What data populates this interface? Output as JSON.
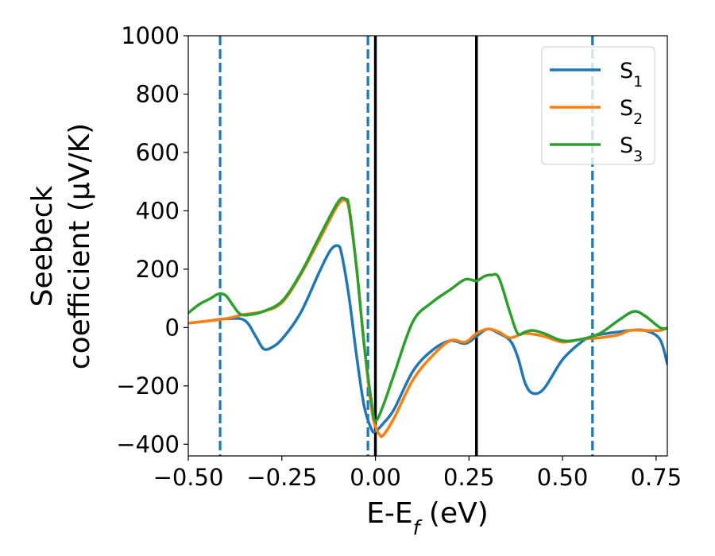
{
  "chart_data": {
    "type": "line",
    "xlabel": {
      "base": "E-E",
      "sub": "f",
      "tail": " (eV)"
    },
    "ylabel": {
      "line1": "Seebeck",
      "line2": "coefficient  (μV/K)"
    },
    "xlim": [
      -0.5,
      0.78
    ],
    "ylim": [
      -440,
      1000
    ],
    "xticks": [
      -0.5,
      -0.25,
      0.0,
      0.25,
      0.5,
      0.75
    ],
    "xtick_labels": [
      "−0.50",
      "−0.25",
      "0.00",
      "0.25",
      "0.50",
      "0.75"
    ],
    "yticks": [
      -400,
      -200,
      0,
      200,
      400,
      600,
      800,
      1000
    ],
    "ytick_labels": [
      "−400",
      "−200",
      "0",
      "200",
      "400",
      "600",
      "800",
      "1000"
    ],
    "legend_position": "top-right",
    "series": [
      {
        "name": "S",
        "sub": "1",
        "color": "#1f77b4",
        "x": [
          -0.5,
          -0.45,
          -0.4,
          -0.35,
          -0.32,
          -0.3,
          -0.28,
          -0.25,
          -0.2,
          -0.15,
          -0.12,
          -0.1,
          -0.09,
          -0.07,
          -0.05,
          -0.03,
          -0.01,
          0.0,
          0.02,
          0.05,
          0.1,
          0.15,
          0.2,
          0.24,
          0.27,
          0.3,
          0.33,
          0.36,
          0.38,
          0.4,
          0.42,
          0.45,
          0.5,
          0.55,
          0.58,
          0.62,
          0.65,
          0.68,
          0.72,
          0.76,
          0.78
        ],
        "y": [
          15,
          22,
          30,
          25,
          -30,
          -72,
          -70,
          -40,
          50,
          190,
          265,
          280,
          250,
          100,
          -100,
          -270,
          -350,
          -355,
          -330,
          -280,
          -150,
          -80,
          -45,
          -55,
          -30,
          -5,
          -20,
          -45,
          -100,
          -190,
          -225,
          -210,
          -110,
          -50,
          -30,
          -20,
          -15,
          -10,
          -10,
          -40,
          -125
        ]
      },
      {
        "name": "S",
        "sub": "2",
        "color": "#ff7f0e",
        "x": [
          -0.5,
          -0.45,
          -0.4,
          -0.35,
          -0.3,
          -0.25,
          -0.2,
          -0.15,
          -0.1,
          -0.08,
          -0.07,
          -0.05,
          -0.03,
          -0.01,
          0.0,
          0.01,
          0.02,
          0.05,
          0.1,
          0.15,
          0.2,
          0.24,
          0.27,
          0.3,
          0.33,
          0.36,
          0.4,
          0.45,
          0.5,
          0.55,
          0.6,
          0.65,
          0.68,
          0.72,
          0.76,
          0.78
        ],
        "y": [
          15,
          22,
          30,
          45,
          55,
          85,
          180,
          300,
          420,
          435,
          400,
          200,
          -60,
          -280,
          -340,
          -365,
          -370,
          -310,
          -180,
          -100,
          -45,
          -50,
          -20,
          -5,
          -15,
          -35,
          -20,
          -30,
          -50,
          -40,
          -35,
          -25,
          -10,
          -10,
          -10,
          0
        ]
      },
      {
        "name": "S",
        "sub": "3",
        "color": "#2ca02c",
        "x": [
          -0.5,
          -0.47,
          -0.44,
          -0.42,
          -0.4,
          -0.38,
          -0.36,
          -0.33,
          -0.3,
          -0.25,
          -0.2,
          -0.15,
          -0.1,
          -0.08,
          -0.07,
          -0.05,
          -0.03,
          -0.01,
          0.0,
          0.02,
          0.05,
          0.1,
          0.15,
          0.2,
          0.24,
          0.27,
          0.29,
          0.31,
          0.33,
          0.36,
          0.38,
          0.4,
          0.42,
          0.45,
          0.5,
          0.55,
          0.6,
          0.65,
          0.69,
          0.72,
          0.76,
          0.78
        ],
        "y": [
          50,
          80,
          100,
          115,
          110,
          75,
          45,
          45,
          55,
          90,
          185,
          310,
          430,
          440,
          410,
          200,
          -60,
          -260,
          -320,
          -270,
          -160,
          20,
          85,
          130,
          165,
          160,
          175,
          180,
          170,
          50,
          -20,
          -15,
          -10,
          -20,
          -45,
          -40,
          -20,
          25,
          55,
          40,
          0,
          -3
        ]
      }
    ],
    "vlines": [
      {
        "x": -0.415,
        "style": "dashed",
        "color": "#1f77b4"
      },
      {
        "x": -0.02,
        "style": "dashed",
        "color": "#1f77b4"
      },
      {
        "x": 0.0,
        "style": "solid",
        "color": "#000000"
      },
      {
        "x": 0.27,
        "style": "solid",
        "color": "#000000"
      },
      {
        "x": 0.58,
        "style": "dashed",
        "color": "#1f77b4"
      }
    ]
  }
}
